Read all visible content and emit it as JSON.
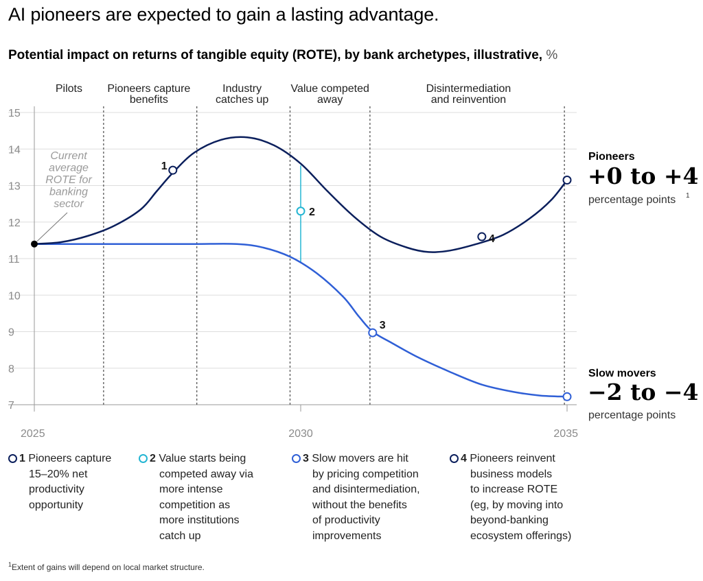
{
  "title": "AI pioneers are expected to gain a lasting advantage.",
  "subtitle": "Potential impact on returns of tangible equity (ROTE), by bank archetypes, illustrative,",
  "subtitle_unit": "%",
  "colors": {
    "pioneers": "#0b1f5c",
    "slow_movers": "#2f5fd6",
    "gap": "#23b5d3",
    "grid": "#dddddd",
    "phase_line": "#555555"
  },
  "chart_data": {
    "type": "line",
    "xlim": [
      2025,
      2035
    ],
    "ylim": [
      7,
      15
    ],
    "x_ticks": [
      2025,
      2030,
      2035
    ],
    "y_ticks": [
      7,
      8,
      9,
      10,
      11,
      12,
      13,
      14,
      15
    ],
    "grid": true,
    "phase_boundaries": [
      2026.3,
      2028.05,
      2029.8,
      2031.3,
      2034.95
    ],
    "phases": [
      {
        "label": [
          "Pilots"
        ],
        "x": 2025.65
      },
      {
        "label": [
          "Pioneers capture",
          "benefits"
        ],
        "x": 2027.15
      },
      {
        "label": [
          "Industry",
          "catches up"
        ],
        "x": 2028.9
      },
      {
        "label": [
          "Value competed",
          "away"
        ],
        "x": 2030.55
      },
      {
        "label": [
          "Disintermediation",
          "and reinvention"
        ],
        "x": 2033.15
      }
    ],
    "series": [
      {
        "name": "Pioneers",
        "color": "#0b1f5c",
        "points": [
          [
            2025.0,
            11.4
          ],
          [
            2025.5,
            11.45
          ],
          [
            2026.0,
            11.62
          ],
          [
            2026.5,
            11.9
          ],
          [
            2027.0,
            12.35
          ],
          [
            2027.3,
            12.85
          ],
          [
            2027.6,
            13.35
          ],
          [
            2028.0,
            13.9
          ],
          [
            2028.5,
            14.25
          ],
          [
            2029.0,
            14.32
          ],
          [
            2029.5,
            14.1
          ],
          [
            2030.0,
            13.6
          ],
          [
            2030.5,
            12.85
          ],
          [
            2031.0,
            12.15
          ],
          [
            2031.5,
            11.6
          ],
          [
            2032.0,
            11.3
          ],
          [
            2032.4,
            11.18
          ],
          [
            2032.8,
            11.22
          ],
          [
            2033.3,
            11.4
          ],
          [
            2033.8,
            11.65
          ],
          [
            2034.3,
            12.1
          ],
          [
            2034.7,
            12.6
          ],
          [
            2035.0,
            13.15
          ]
        ]
      },
      {
        "name": "Slow movers",
        "color": "#2f5fd6",
        "points": [
          [
            2025.0,
            11.4
          ],
          [
            2026.0,
            11.4
          ],
          [
            2027.0,
            11.4
          ],
          [
            2028.0,
            11.4
          ],
          [
            2028.8,
            11.4
          ],
          [
            2029.3,
            11.3
          ],
          [
            2029.8,
            11.05
          ],
          [
            2030.3,
            10.6
          ],
          [
            2030.8,
            9.95
          ],
          [
            2031.1,
            9.4
          ],
          [
            2031.35,
            9.0
          ],
          [
            2031.7,
            8.7
          ],
          [
            2032.2,
            8.3
          ],
          [
            2032.8,
            7.9
          ],
          [
            2033.4,
            7.55
          ],
          [
            2034.0,
            7.35
          ],
          [
            2034.5,
            7.25
          ],
          [
            2035.0,
            7.22
          ]
        ]
      }
    ],
    "gap_line": {
      "x": 2030.0,
      "from": 10.9,
      "to": 13.55
    },
    "callouts": [
      {
        "label": "1",
        "x": 2027.6,
        "y": 13.42,
        "color": "#0b1f5c"
      },
      {
        "label": "2",
        "x": 2030.0,
        "y": 12.3,
        "color": "#23b5d3"
      },
      {
        "label": "3",
        "x": 2031.35,
        "y": 8.97,
        "color": "#2f5fd6"
      },
      {
        "label": "4",
        "x": 2033.4,
        "y": 11.6,
        "color": "#0b1f5c"
      }
    ],
    "start_point": {
      "x": 2025.0,
      "y": 11.4
    },
    "annotation": [
      "Current",
      "average",
      "ROTE for",
      "banking",
      "sector"
    ]
  },
  "side_labels": {
    "pioneers": {
      "name": "Pioneers",
      "range": "+0 to +4",
      "unit": "percentage points",
      "sup": "1"
    },
    "slow_movers": {
      "name": "Slow movers",
      "range": "−2 to −4",
      "unit": "percentage points"
    }
  },
  "notes": [
    {
      "num": "1",
      "text": "Pioneers capture\n15–20% net\nproductivity\nopportunity",
      "color": "#0b1f5c"
    },
    {
      "num": "2",
      "text": "Value starts being\ncompeted away via\nmore intense\ncompetition as\nmore institutions\ncatch up",
      "color": "#23b5d3"
    },
    {
      "num": "3",
      "text": "Slow movers are hit\nby pricing competition\nand disintermediation,\nwithout the benefits\nof productivity\nimprovements",
      "color": "#2f5fd6"
    },
    {
      "num": "4",
      "text": "Pioneers reinvent\nbusiness models\nto increase ROTE\n(eg, by moving into\nbeyond-banking\necosystem offerings)",
      "color": "#0b1f5c"
    }
  ],
  "footnote": {
    "sup": "1",
    "text": "Extent of gains will depend on local market structure."
  }
}
